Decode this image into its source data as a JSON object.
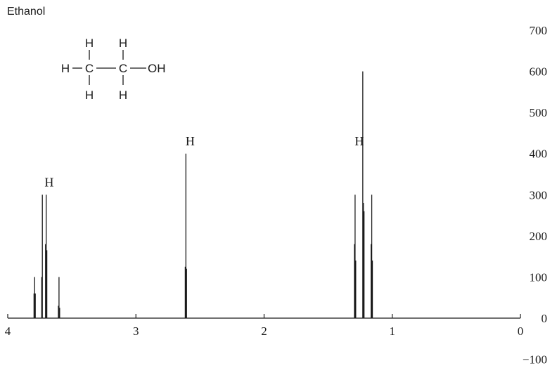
{
  "chart_data": {
    "type": "line",
    "title": "Ethanol",
    "molecule": {
      "atoms": [
        "H",
        "H",
        "H",
        "C",
        "C",
        "OH",
        "H",
        "H",
        "H"
      ]
    },
    "x_axis": {
      "ticks": [
        "4",
        "3",
        "2",
        "1",
        "0"
      ],
      "range": [
        4,
        0
      ],
      "reversed": true
    },
    "y_axis": {
      "ticks": [
        "700",
        "600",
        "500",
        "400",
        "300",
        "200",
        "100",
        "0",
        "−100"
      ],
      "range": [
        -100,
        700
      ],
      "position": "right"
    },
    "grid": false,
    "peak_labels": [
      {
        "text": "H",
        "x": 3.71,
        "y": 320
      },
      {
        "text": "H",
        "x": 2.61,
        "y": 420
      },
      {
        "text": "H",
        "x": 1.29,
        "y": 420
      }
    ],
    "series": [
      {
        "peaks": [
          {
            "x": 3.79,
            "y": 100
          },
          {
            "x": 3.795,
            "y": 60
          },
          {
            "x": 3.785,
            "y": 60
          },
          {
            "x": 3.73,
            "y": 300
          },
          {
            "x": 3.735,
            "y": 100
          },
          {
            "x": 3.7,
            "y": 300
          },
          {
            "x": 3.705,
            "y": 180
          },
          {
            "x": 3.695,
            "y": 165
          },
          {
            "x": 3.6,
            "y": 100
          },
          {
            "x": 3.605,
            "y": 30
          },
          {
            "x": 3.595,
            "y": 25
          },
          {
            "x": 2.61,
            "y": 400
          },
          {
            "x": 2.615,
            "y": 125
          },
          {
            "x": 2.605,
            "y": 120
          },
          {
            "x": 1.29,
            "y": 300
          },
          {
            "x": 1.295,
            "y": 180
          },
          {
            "x": 1.285,
            "y": 140
          },
          {
            "x": 1.23,
            "y": 600
          },
          {
            "x": 1.225,
            "y": 280
          },
          {
            "x": 1.22,
            "y": 260
          },
          {
            "x": 1.16,
            "y": 300
          },
          {
            "x": 1.165,
            "y": 180
          },
          {
            "x": 1.155,
            "y": 140
          }
        ]
      }
    ]
  }
}
